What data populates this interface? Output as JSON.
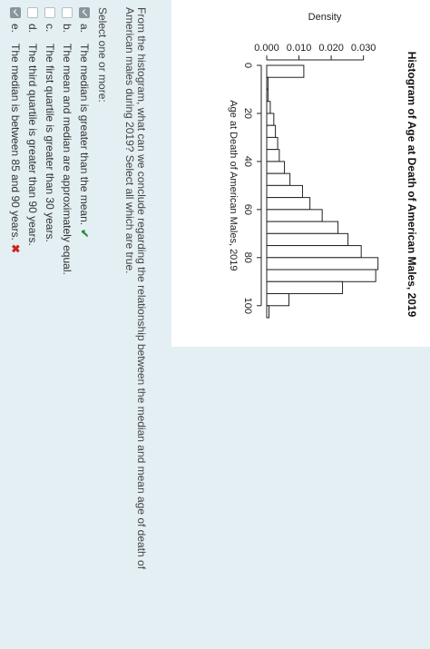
{
  "chart_data": {
    "type": "bar",
    "title": "Histogram of Age at Death of American Males, 2019",
    "xlabel": "Age at Death of American Males, 2019",
    "ylabel": "Density",
    "x_ticks": [
      0,
      20,
      40,
      60,
      80,
      100
    ],
    "y_ticks": [
      "0.000",
      "0.010",
      "0.020",
      "0.030"
    ],
    "ylim": [
      0,
      0.036
    ],
    "bins": [
      {
        "start": 0,
        "end": 5,
        "density": 0.0115
      },
      {
        "start": 5,
        "end": 10,
        "density": 0.0004
      },
      {
        "start": 10,
        "end": 15,
        "density": 0.0004
      },
      {
        "start": 15,
        "end": 20,
        "density": 0.0011
      },
      {
        "start": 20,
        "end": 25,
        "density": 0.0022
      },
      {
        "start": 25,
        "end": 30,
        "density": 0.0027
      },
      {
        "start": 30,
        "end": 35,
        "density": 0.0034
      },
      {
        "start": 35,
        "end": 40,
        "density": 0.0039
      },
      {
        "start": 40,
        "end": 45,
        "density": 0.0055
      },
      {
        "start": 45,
        "end": 50,
        "density": 0.0072
      },
      {
        "start": 50,
        "end": 55,
        "density": 0.0111
      },
      {
        "start": 55,
        "end": 60,
        "density": 0.0134
      },
      {
        "start": 60,
        "end": 65,
        "density": 0.0172
      },
      {
        "start": 65,
        "end": 70,
        "density": 0.0221
      },
      {
        "start": 70,
        "end": 75,
        "density": 0.0252
      },
      {
        "start": 75,
        "end": 80,
        "density": 0.0293
      },
      {
        "start": 80,
        "end": 85,
        "density": 0.0345
      },
      {
        "start": 85,
        "end": 90,
        "density": 0.0338
      },
      {
        "start": 90,
        "end": 95,
        "density": 0.0235
      },
      {
        "start": 95,
        "end": 100,
        "density": 0.0069
      },
      {
        "start": 100,
        "end": 105,
        "density": 0.0007
      }
    ],
    "grid": false
  },
  "question": {
    "text": "From the histogram, what can we conclude regarding the relationship between the median and mean age of death of American males during 2019? Select all which are true.",
    "instruction": "Select one or more:",
    "options": [
      {
        "letter": "a.",
        "text": "The median is greater than the mean.",
        "checked": true,
        "mark": "✔"
      },
      {
        "letter": "b.",
        "text": "The mean and median are approximately equal.",
        "checked": false,
        "mark": ""
      },
      {
        "letter": "c.",
        "text": "The first quartile is greater than 30 years.",
        "checked": false,
        "mark": ""
      },
      {
        "letter": "d.",
        "text": "The third quartile is greater than 90 years.",
        "checked": false,
        "mark": ""
      },
      {
        "letter": "e.",
        "text": "The median is between 85 and 90 years.",
        "checked": true,
        "mark": "✖"
      }
    ]
  }
}
